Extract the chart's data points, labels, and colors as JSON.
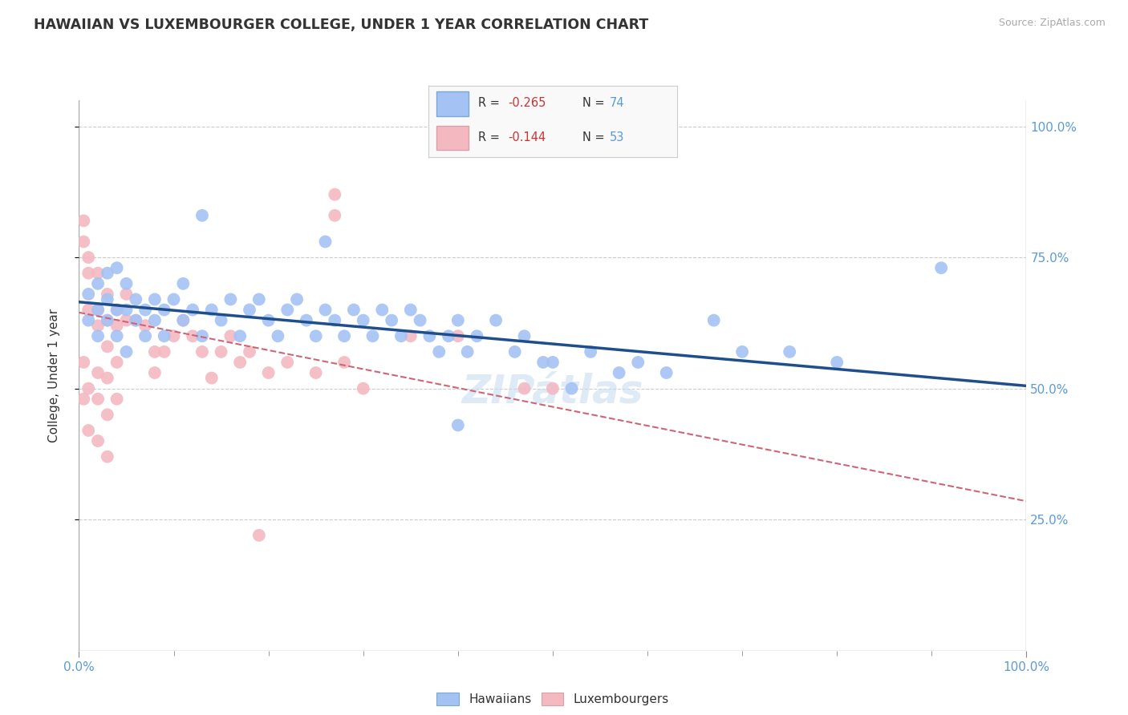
{
  "title": "HAWAIIAN VS LUXEMBOURGER COLLEGE, UNDER 1 YEAR CORRELATION CHART",
  "source_text": "Source: ZipAtlas.com",
  "ylabel": "College, Under 1 year",
  "xmin": 0.0,
  "xmax": 1.0,
  "ymin": 0.0,
  "ymax": 1.05,
  "legend_r1": "R = -0.265",
  "legend_n1": "N = 74",
  "legend_r2": "R = -0.144",
  "legend_n2": "N = 53",
  "hawaiian_color": "#a4c2f4",
  "luxembourger_color": "#f4b8c1",
  "trendline_hawaiian_color": "#1f4e8c",
  "trendline_luxembourger_color": "#cc6677",
  "background_color": "#ffffff",
  "grid_color": "#cccccc",
  "hawaiian_scatter": [
    [
      0.01,
      0.63
    ],
    [
      0.01,
      0.68
    ],
    [
      0.02,
      0.65
    ],
    [
      0.02,
      0.6
    ],
    [
      0.02,
      0.7
    ],
    [
      0.03,
      0.63
    ],
    [
      0.03,
      0.67
    ],
    [
      0.03,
      0.72
    ],
    [
      0.04,
      0.6
    ],
    [
      0.04,
      0.65
    ],
    [
      0.04,
      0.73
    ],
    [
      0.05,
      0.57
    ],
    [
      0.05,
      0.65
    ],
    [
      0.05,
      0.7
    ],
    [
      0.06,
      0.63
    ],
    [
      0.06,
      0.67
    ],
    [
      0.07,
      0.6
    ],
    [
      0.07,
      0.65
    ],
    [
      0.08,
      0.63
    ],
    [
      0.08,
      0.67
    ],
    [
      0.09,
      0.6
    ],
    [
      0.09,
      0.65
    ],
    [
      0.1,
      0.67
    ],
    [
      0.11,
      0.63
    ],
    [
      0.11,
      0.7
    ],
    [
      0.12,
      0.65
    ],
    [
      0.13,
      0.6
    ],
    [
      0.14,
      0.65
    ],
    [
      0.15,
      0.63
    ],
    [
      0.16,
      0.67
    ],
    [
      0.17,
      0.6
    ],
    [
      0.18,
      0.65
    ],
    [
      0.19,
      0.67
    ],
    [
      0.2,
      0.63
    ],
    [
      0.21,
      0.6
    ],
    [
      0.22,
      0.65
    ],
    [
      0.23,
      0.67
    ],
    [
      0.24,
      0.63
    ],
    [
      0.25,
      0.6
    ],
    [
      0.26,
      0.65
    ],
    [
      0.27,
      0.63
    ],
    [
      0.28,
      0.6
    ],
    [
      0.29,
      0.65
    ],
    [
      0.3,
      0.63
    ],
    [
      0.31,
      0.6
    ],
    [
      0.32,
      0.65
    ],
    [
      0.33,
      0.63
    ],
    [
      0.34,
      0.6
    ],
    [
      0.35,
      0.65
    ],
    [
      0.36,
      0.63
    ],
    [
      0.37,
      0.6
    ],
    [
      0.38,
      0.57
    ],
    [
      0.39,
      0.6
    ],
    [
      0.4,
      0.63
    ],
    [
      0.41,
      0.57
    ],
    [
      0.42,
      0.6
    ],
    [
      0.44,
      0.63
    ],
    [
      0.46,
      0.57
    ],
    [
      0.47,
      0.6
    ],
    [
      0.49,
      0.55
    ],
    [
      0.5,
      0.55
    ],
    [
      0.52,
      0.5
    ],
    [
      0.54,
      0.57
    ],
    [
      0.57,
      0.53
    ],
    [
      0.59,
      0.55
    ],
    [
      0.62,
      0.53
    ],
    [
      0.67,
      0.63
    ],
    [
      0.7,
      0.57
    ],
    [
      0.75,
      0.57
    ],
    [
      0.8,
      0.55
    ],
    [
      0.13,
      0.83
    ],
    [
      0.26,
      0.78
    ],
    [
      0.91,
      0.73
    ],
    [
      0.4,
      0.43
    ]
  ],
  "luxembourger_scatter": [
    [
      0.005,
      0.82
    ],
    [
      0.005,
      0.78
    ],
    [
      0.01,
      0.75
    ],
    [
      0.01,
      0.72
    ],
    [
      0.01,
      0.65
    ],
    [
      0.02,
      0.72
    ],
    [
      0.02,
      0.65
    ],
    [
      0.02,
      0.62
    ],
    [
      0.03,
      0.68
    ],
    [
      0.03,
      0.63
    ],
    [
      0.03,
      0.58
    ],
    [
      0.04,
      0.65
    ],
    [
      0.04,
      0.62
    ],
    [
      0.04,
      0.55
    ],
    [
      0.05,
      0.63
    ],
    [
      0.005,
      0.55
    ],
    [
      0.005,
      0.48
    ],
    [
      0.01,
      0.5
    ],
    [
      0.02,
      0.53
    ],
    [
      0.02,
      0.48
    ],
    [
      0.03,
      0.52
    ],
    [
      0.03,
      0.45
    ],
    [
      0.04,
      0.48
    ],
    [
      0.01,
      0.42
    ],
    [
      0.02,
      0.4
    ],
    [
      0.03,
      0.37
    ],
    [
      0.05,
      0.68
    ],
    [
      0.06,
      0.63
    ],
    [
      0.07,
      0.62
    ],
    [
      0.08,
      0.57
    ],
    [
      0.08,
      0.53
    ],
    [
      0.09,
      0.57
    ],
    [
      0.1,
      0.6
    ],
    [
      0.11,
      0.63
    ],
    [
      0.12,
      0.6
    ],
    [
      0.13,
      0.57
    ],
    [
      0.14,
      0.52
    ],
    [
      0.15,
      0.57
    ],
    [
      0.16,
      0.6
    ],
    [
      0.17,
      0.55
    ],
    [
      0.18,
      0.57
    ],
    [
      0.2,
      0.53
    ],
    [
      0.22,
      0.55
    ],
    [
      0.25,
      0.53
    ],
    [
      0.27,
      0.87
    ],
    [
      0.27,
      0.83
    ],
    [
      0.28,
      0.55
    ],
    [
      0.3,
      0.5
    ],
    [
      0.35,
      0.6
    ],
    [
      0.4,
      0.6
    ],
    [
      0.47,
      0.5
    ],
    [
      0.5,
      0.5
    ],
    [
      0.19,
      0.22
    ]
  ],
  "hawaiian_trendline_x": [
    0.0,
    1.0
  ],
  "hawaiian_trendline_y": [
    0.665,
    0.505
  ],
  "luxembourger_trendline_x": [
    0.0,
    1.0
  ],
  "luxembourger_trendline_y": [
    0.645,
    0.285
  ]
}
